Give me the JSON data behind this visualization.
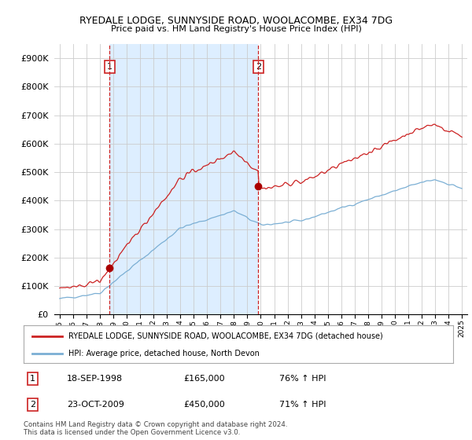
{
  "title1": "RYEDALE LODGE, SUNNYSIDE ROAD, WOOLACOMBE, EX34 7DG",
  "title2": "Price paid vs. HM Land Registry's House Price Index (HPI)",
  "ylim": [
    0,
    950000
  ],
  "yticks": [
    0,
    100000,
    200000,
    300000,
    400000,
    500000,
    600000,
    700000,
    800000,
    900000
  ],
  "ytick_labels": [
    "£0",
    "£100K",
    "£200K",
    "£300K",
    "£400K",
    "£500K",
    "£600K",
    "£700K",
    "£800K",
    "£900K"
  ],
  "hpi_color": "#7bafd4",
  "price_color": "#cc2222",
  "vline_color": "#cc2222",
  "marker_color": "#aa0000",
  "shade_color": "#ddeeff",
  "transaction1_x": 1998.72,
  "transaction1_price": 165000,
  "transaction2_x": 2009.81,
  "transaction2_price": 450000,
  "legend_label1": "RYEDALE LODGE, SUNNYSIDE ROAD, WOOLACOMBE, EX34 7DG (detached house)",
  "legend_label2": "HPI: Average price, detached house, North Devon",
  "table_rows": [
    {
      "num": "1",
      "date": "18-SEP-1998",
      "price": "£165,000",
      "change": "76% ↑ HPI"
    },
    {
      "num": "2",
      "date": "23-OCT-2009",
      "price": "£450,000",
      "change": "71% ↑ HPI"
    }
  ],
  "footer": "Contains HM Land Registry data © Crown copyright and database right 2024.\nThis data is licensed under the Open Government Licence v3.0.",
  "bg_color": "#ffffff",
  "grid_color": "#cccccc"
}
